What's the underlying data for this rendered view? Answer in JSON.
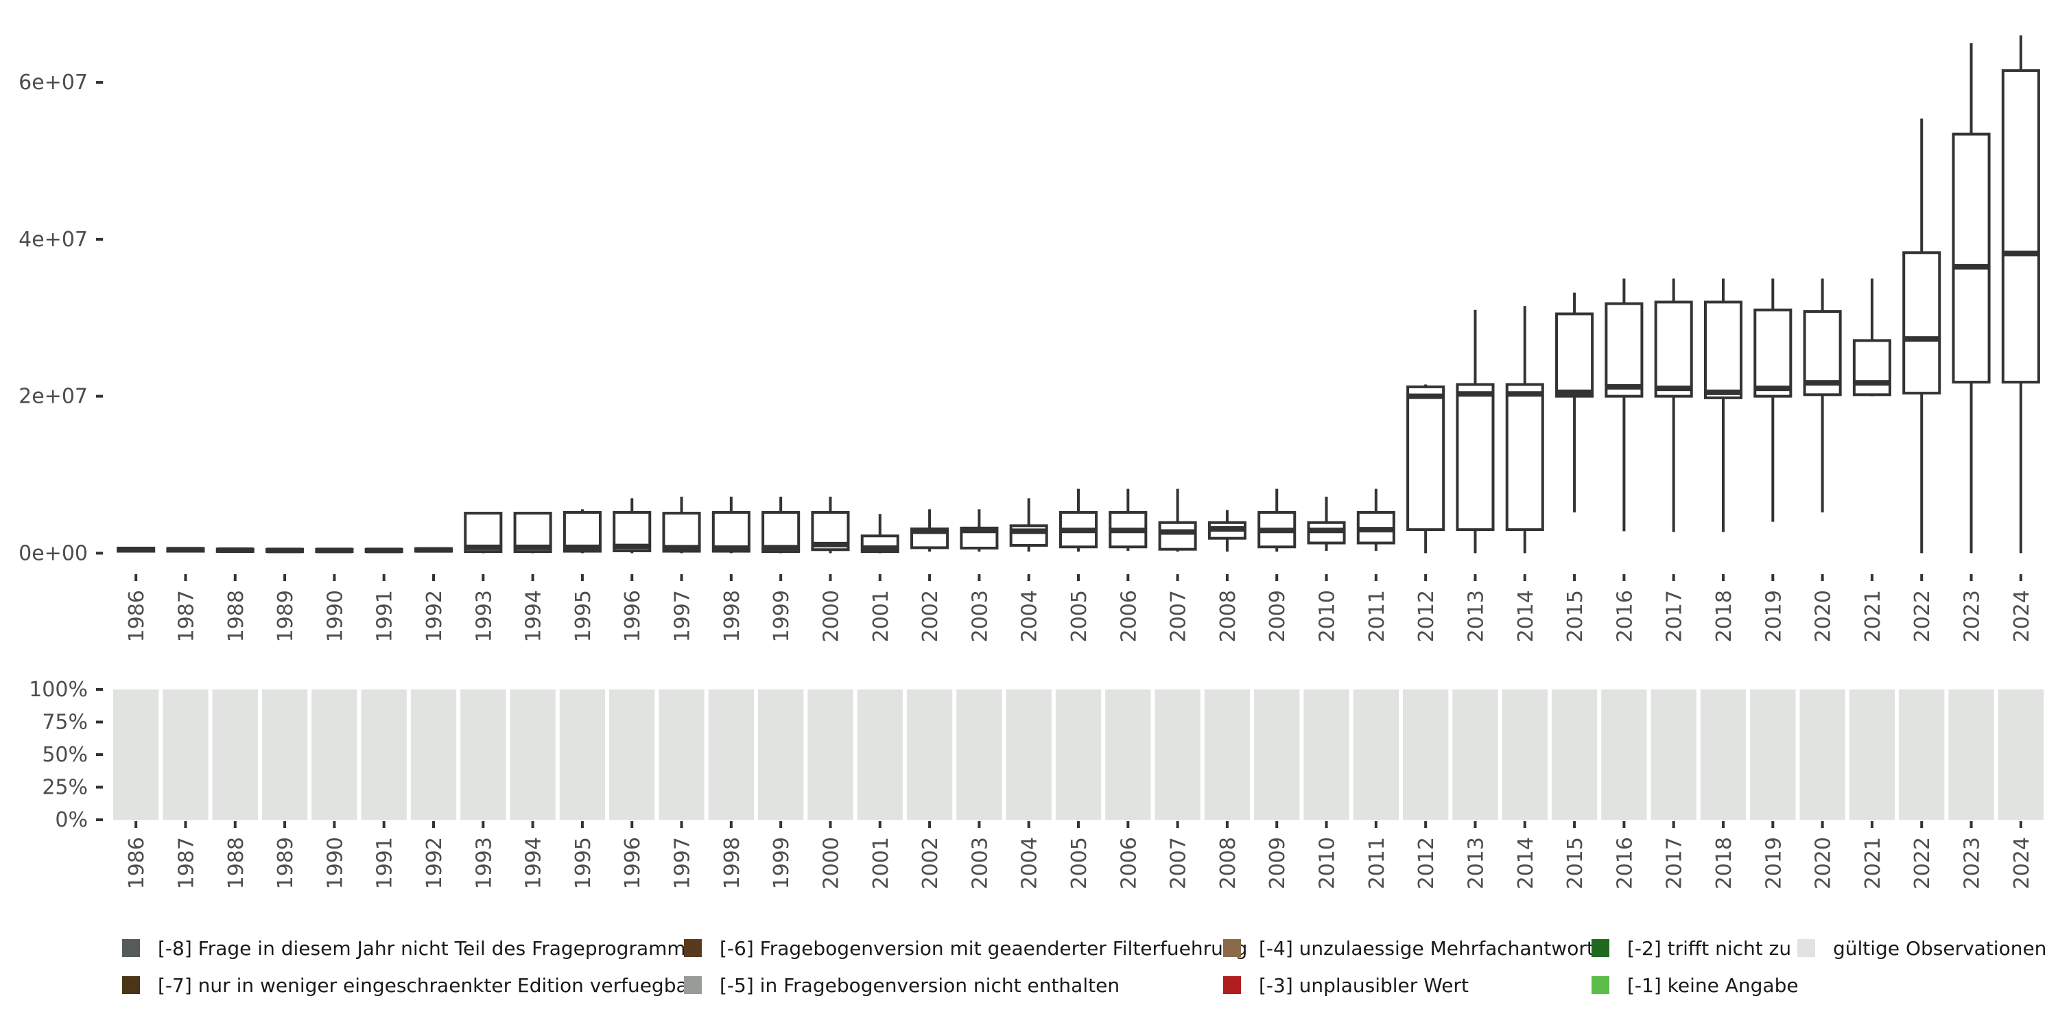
{
  "chart_data": [
    {
      "type": "boxplot",
      "title": "",
      "xlabel": "",
      "ylabel": "",
      "ylim": [
        -2500000,
        67000000
      ],
      "y_ticks": [
        {
          "value": 0,
          "label": "0e+00"
        },
        {
          "value": 20000000,
          "label": "2e+07"
        },
        {
          "value": 40000000,
          "label": "4e+07"
        },
        {
          "value": 60000000,
          "label": "6e+07"
        }
      ],
      "categories": [
        "1986",
        "1987",
        "1988",
        "1989",
        "1990",
        "1991",
        "1992",
        "1993",
        "1994",
        "1995",
        "1996",
        "1997",
        "1998",
        "1999",
        "2000",
        "2001",
        "2002",
        "2003",
        "2004",
        "2005",
        "2006",
        "2007",
        "2008",
        "2009",
        "2010",
        "2011",
        "2012",
        "2013",
        "2014",
        "2015",
        "2016",
        "2017",
        "2018",
        "2019",
        "2020",
        "2021",
        "2022",
        "2023",
        "2024"
      ],
      "boxes": [
        {
          "min": 150000,
          "q1": 250000,
          "median": 450000,
          "q3": 650000,
          "max": 800000
        },
        {
          "min": 150000,
          "q1": 250000,
          "median": 450000,
          "q3": 600000,
          "max": 750000
        },
        {
          "min": 150000,
          "q1": 220000,
          "median": 380000,
          "q3": 520000,
          "max": 650000
        },
        {
          "min": 100000,
          "q1": 200000,
          "median": 350000,
          "q3": 500000,
          "max": 600000
        },
        {
          "min": 100000,
          "q1": 200000,
          "median": 350000,
          "q3": 500000,
          "max": 600000
        },
        {
          "min": 100000,
          "q1": 200000,
          "median": 350000,
          "q3": 500000,
          "max": 650000
        },
        {
          "min": 150000,
          "q1": 250000,
          "median": 420000,
          "q3": 580000,
          "max": 700000
        },
        {
          "min": 0,
          "q1": 200000,
          "median": 750000,
          "q3": 5100000,
          "max": 5100000
        },
        {
          "min": 0,
          "q1": 200000,
          "median": 750000,
          "q3": 5100000,
          "max": 5100000
        },
        {
          "min": 0,
          "q1": 250000,
          "median": 750000,
          "q3": 5200000,
          "max": 5600000
        },
        {
          "min": 0,
          "q1": 300000,
          "median": 850000,
          "q3": 5200000,
          "max": 7000000
        },
        {
          "min": 0,
          "q1": 250000,
          "median": 700000,
          "q3": 5100000,
          "max": 7200000
        },
        {
          "min": 0,
          "q1": 250000,
          "median": 650000,
          "q3": 5200000,
          "max": 7200000
        },
        {
          "min": 0,
          "q1": 200000,
          "median": 700000,
          "q3": 5200000,
          "max": 7200000
        },
        {
          "min": 0,
          "q1": 450000,
          "median": 1100000,
          "q3": 5200000,
          "max": 7200000
        },
        {
          "min": 0,
          "q1": 200000,
          "median": 650000,
          "q3": 2200000,
          "max": 5000000
        },
        {
          "min": 200000,
          "q1": 700000,
          "median": 2800000,
          "q3": 3100000,
          "max": 5600000
        },
        {
          "min": 200000,
          "q1": 650000,
          "median": 2900000,
          "q3": 3200000,
          "max": 5600000
        },
        {
          "min": 200000,
          "q1": 1000000,
          "median": 2800000,
          "q3": 3500000,
          "max": 7000000
        },
        {
          "min": 200000,
          "q1": 800000,
          "median": 2900000,
          "q3": 5200000,
          "max": 8200000
        },
        {
          "min": 300000,
          "q1": 800000,
          "median": 2900000,
          "q3": 5200000,
          "max": 8200000
        },
        {
          "min": 200000,
          "q1": 500000,
          "median": 2700000,
          "q3": 3900000,
          "max": 8200000
        },
        {
          "min": 200000,
          "q1": 1900000,
          "median": 3100000,
          "q3": 3900000,
          "max": 5500000
        },
        {
          "min": 200000,
          "q1": 800000,
          "median": 2900000,
          "q3": 5200000,
          "max": 8200000
        },
        {
          "min": 300000,
          "q1": 1300000,
          "median": 2900000,
          "q3": 3900000,
          "max": 7200000
        },
        {
          "min": 300000,
          "q1": 1300000,
          "median": 3000000,
          "q3": 5200000,
          "max": 8200000
        },
        {
          "min": 0,
          "q1": 3000000,
          "median": 20000000,
          "q3": 21200000,
          "max": 21500000
        },
        {
          "min": 0,
          "q1": 3000000,
          "median": 20300000,
          "q3": 21500000,
          "max": 31000000
        },
        {
          "min": 0,
          "q1": 3000000,
          "median": 20300000,
          "q3": 21500000,
          "max": 31500000
        },
        {
          "min": 5200000,
          "q1": 20000000,
          "median": 20500000,
          "q3": 30500000,
          "max": 33200000
        },
        {
          "min": 2800000,
          "q1": 20000000,
          "median": 21200000,
          "q3": 31800000,
          "max": 35000000
        },
        {
          "min": 2700000,
          "q1": 20000000,
          "median": 21000000,
          "q3": 32000000,
          "max": 35000000
        },
        {
          "min": 2700000,
          "q1": 19800000,
          "median": 20500000,
          "q3": 32000000,
          "max": 35000000
        },
        {
          "min": 4000000,
          "q1": 20000000,
          "median": 21000000,
          "q3": 31000000,
          "max": 35000000
        },
        {
          "min": 5200000,
          "q1": 20200000,
          "median": 21700000,
          "q3": 30800000,
          "max": 35000000
        },
        {
          "min": 20000000,
          "q1": 20200000,
          "median": 21700000,
          "q3": 27100000,
          "max": 35000000
        },
        {
          "min": 0,
          "q1": 20400000,
          "median": 27300000,
          "q3": 38300000,
          "max": 55400000
        },
        {
          "min": 0,
          "q1": 21800000,
          "median": 36500000,
          "q3": 53400000,
          "max": 65000000
        },
        {
          "min": 0,
          "q1": 21800000,
          "median": 38200000,
          "q3": 61500000,
          "max": 66000000
        }
      ]
    },
    {
      "type": "stacked-bar",
      "title": "",
      "xlabel": "",
      "ylabel": "",
      "ylim": [
        0,
        100
      ],
      "y_ticks": [
        {
          "value": 0,
          "label": "0%"
        },
        {
          "value": 25,
          "label": "25%"
        },
        {
          "value": 50,
          "label": "50%"
        },
        {
          "value": 75,
          "label": "75%"
        },
        {
          "value": 100,
          "label": "100%"
        }
      ],
      "categories": [
        "1986",
        "1987",
        "1988",
        "1989",
        "1990",
        "1991",
        "1992",
        "1993",
        "1994",
        "1995",
        "1996",
        "1997",
        "1998",
        "1999",
        "2000",
        "2001",
        "2002",
        "2003",
        "2004",
        "2005",
        "2006",
        "2007",
        "2008",
        "2009",
        "2010",
        "2011",
        "2012",
        "2013",
        "2014",
        "2015",
        "2016",
        "2017",
        "2018",
        "2019",
        "2020",
        "2021",
        "2022",
        "2023",
        "2024"
      ],
      "series": [
        {
          "name": "gültige Observationen",
          "color": "#e0e3e0",
          "values": [
            100,
            100,
            100,
            100,
            100,
            100,
            100,
            100,
            100,
            100,
            100,
            100,
            100,
            100,
            100,
            100,
            100,
            100,
            100,
            100,
            100,
            100,
            100,
            100,
            100,
            100,
            100,
            100,
            100,
            100,
            100,
            100,
            100,
            100,
            100,
            100,
            100,
            100,
            100
          ]
        }
      ]
    }
  ],
  "legend": {
    "items": [
      {
        "label": "[-8] Frage in diesem Jahr nicht Teil des Frageprogramms",
        "color": "#555b57"
      },
      {
        "label": "[-7] nur in weniger eingeschraenkter Edition verfuegbar",
        "color": "#4a3518"
      },
      {
        "label": "[-6] Fragebogenversion mit geaenderter Filterfuehrung",
        "color": "#5a3a1e"
      },
      {
        "label": "[-5] in Fragebogenversion nicht enthalten",
        "color": "#999b98"
      },
      {
        "label": "[-4] unzulaessige Mehrfachantwort",
        "color": "#8b6a4a"
      },
      {
        "label": "[-3] unplausibler Wert",
        "color": "#b01e1e"
      },
      {
        "label": "[-2] trifft nicht zu",
        "color": "#1f6a1f"
      },
      {
        "label": "[-1] keine Angabe",
        "color": "#5cbd4a"
      },
      {
        "label": "gültige Observationen",
        "color": "#e0e3e0"
      }
    ]
  }
}
